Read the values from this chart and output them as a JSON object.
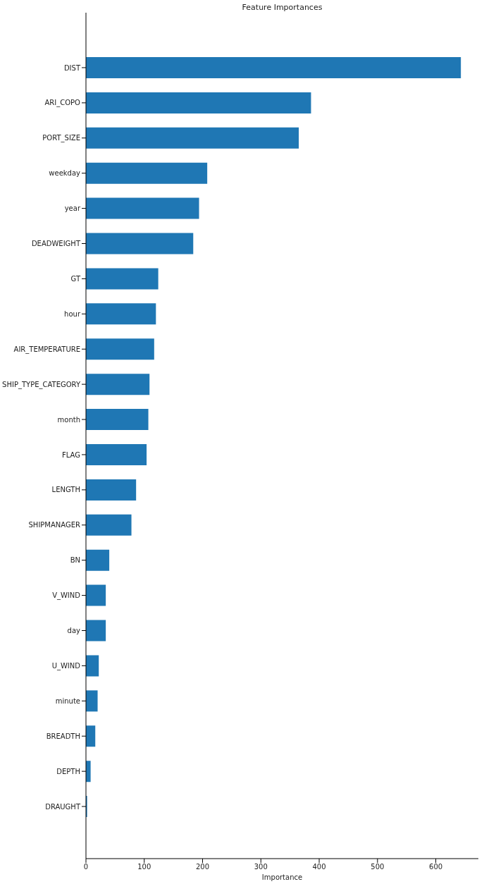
{
  "chart_data": {
    "type": "bar",
    "orientation": "horizontal",
    "title": "Feature Importances",
    "xlabel": "Importance",
    "categories": [
      "DIST",
      "ARI_COPO",
      "PORT_SIZE",
      "weekday",
      "year",
      "DEADWEIGHT",
      "GT",
      "hour",
      "AIR_TEMPERATURE",
      "SHIP_TYPE_CATEGORY",
      "month",
      "FLAG",
      "LENGTH",
      "SHIPMANAGER",
      "BN",
      "V_WIND",
      "day",
      "U_WIND",
      "minute",
      "BREADTH",
      "DEPTH",
      "DRAUGHT"
    ],
    "values": [
      643,
      386,
      365,
      208,
      194,
      184,
      124,
      120,
      117,
      109,
      107,
      104,
      86,
      78,
      40,
      34,
      34,
      22,
      20,
      16,
      8,
      2
    ],
    "color": "#1f77b4",
    "xlim": [
      0,
      673
    ],
    "xticks": [
      0,
      100,
      200,
      300,
      400,
      500,
      600
    ],
    "grid": false,
    "legend": false
  }
}
